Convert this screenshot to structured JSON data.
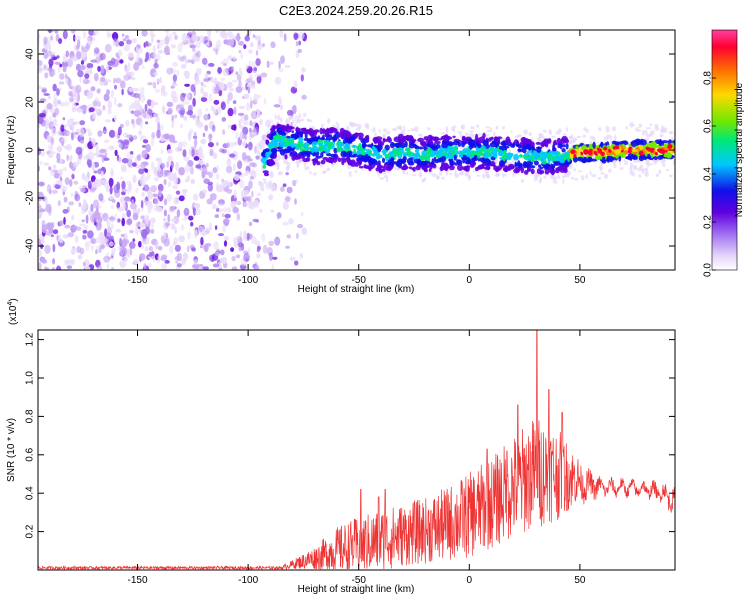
{
  "figure_title": "C2E3.2024.259.20.26.R15",
  "chart_data": [
    {
      "type": "heatmap",
      "title": "C2E3.2024.259.20.26.R15",
      "xlabel": "Height of straight line (km)",
      "ylabel": "Frequency (Hz)",
      "xlim": [
        -195,
        93
      ],
      "ylim": [
        -50,
        50
      ],
      "xticks": [
        -150,
        -100,
        -50,
        0,
        50
      ],
      "yticks": [
        -40,
        -20,
        0,
        20,
        40
      ],
      "colorbar": {
        "label": "Normalized spectral amplitude",
        "range": [
          0,
          1
        ],
        "ticks": [
          0.0,
          0.2,
          0.4,
          0.6,
          0.8
        ],
        "colormap": [
          "#ffffff",
          "#e4d4f8",
          "#a070f0",
          "#6000e0",
          "#1010e8",
          "#00c8ff",
          "#00e878",
          "#70e800",
          "#ffd800",
          "#ff7000",
          "#ff0030",
          "#ff40a0"
        ]
      },
      "noise_region_x": [
        -195,
        -80
      ],
      "ridge": [
        {
          "x": -93,
          "y": -6
        },
        {
          "x": -88,
          "y": 4
        },
        {
          "x": -80,
          "y": 3
        },
        {
          "x": -70,
          "y": 1
        },
        {
          "x": -60,
          "y": 2
        },
        {
          "x": -50,
          "y": 0
        },
        {
          "x": -40,
          "y": -2
        },
        {
          "x": -30,
          "y": -1
        },
        {
          "x": -20,
          "y": -2
        },
        {
          "x": -10,
          "y": -1
        },
        {
          "x": 0,
          "y": -1
        },
        {
          "x": 10,
          "y": -1
        },
        {
          "x": 20,
          "y": -2
        },
        {
          "x": 30,
          "y": -3
        },
        {
          "x": 40,
          "y": -3
        },
        {
          "x": 45,
          "y": -2
        },
        {
          "x": 50,
          "y": -1
        },
        {
          "x": 60,
          "y": -1
        },
        {
          "x": 70,
          "y": 0
        },
        {
          "x": 80,
          "y": 0
        },
        {
          "x": 90,
          "y": 0
        }
      ]
    },
    {
      "type": "line",
      "xlabel": "Height of straight line (km)",
      "ylabel": "SNR (10 * v/v)",
      "ylabel_multiplier": "(x10",
      "ylabel_multiplier_exp": "4",
      "multiplier_close": ")",
      "xlim": [
        -195,
        93
      ],
      "ylim": [
        0,
        1.25
      ],
      "xticks": [
        -150,
        -100,
        -50,
        0,
        50
      ],
      "yticks": [
        0.2,
        0.4,
        0.6,
        0.8,
        1.0,
        1.2
      ],
      "yticklabels": [
        "0.2",
        "0.4",
        "0.6",
        "0.8",
        "1.0",
        "1.2"
      ],
      "color": "#ee3333",
      "envelope": [
        {
          "x": -195,
          "base": 0.01,
          "amp": 0.01
        },
        {
          "x": -85,
          "base": 0.01,
          "amp": 0.01
        },
        {
          "x": -78,
          "base": 0.03,
          "amp": 0.04
        },
        {
          "x": -70,
          "base": 0.05,
          "amp": 0.08
        },
        {
          "x": -60,
          "base": 0.08,
          "amp": 0.16
        },
        {
          "x": -50,
          "base": 0.1,
          "amp": 0.2
        },
        {
          "x": -40,
          "base": 0.12,
          "amp": 0.22
        },
        {
          "x": -30,
          "base": 0.15,
          "amp": 0.22
        },
        {
          "x": -20,
          "base": 0.17,
          "amp": 0.23
        },
        {
          "x": -10,
          "base": 0.2,
          "amp": 0.26
        },
        {
          "x": 0,
          "base": 0.24,
          "amp": 0.3
        },
        {
          "x": 10,
          "base": 0.3,
          "amp": 0.32
        },
        {
          "x": 20,
          "base": 0.38,
          "amp": 0.36
        },
        {
          "x": 30,
          "base": 0.45,
          "amp": 0.4
        },
        {
          "x": 40,
          "base": 0.45,
          "amp": 0.32
        },
        {
          "x": 50,
          "base": 0.45,
          "amp": 0.15
        },
        {
          "x": 60,
          "base": 0.43,
          "amp": 0.06
        },
        {
          "x": 70,
          "base": 0.43,
          "amp": 0.05
        },
        {
          "x": 80,
          "base": 0.42,
          "amp": 0.05
        },
        {
          "x": 88,
          "base": 0.4,
          "amp": 0.07
        },
        {
          "x": 93,
          "base": 0.35,
          "amp": 0.1
        }
      ],
      "peaks": [
        {
          "x": -49,
          "y": 0.42
        },
        {
          "x": -41,
          "y": 0.38
        },
        {
          "x": -38,
          "y": 0.42
        },
        {
          "x": 8,
          "y": 0.63
        },
        {
          "x": 17,
          "y": 0.62
        },
        {
          "x": 22,
          "y": 0.86
        },
        {
          "x": 30.5,
          "y": 1.26
        },
        {
          "x": 36,
          "y": 0.94
        },
        {
          "x": 42,
          "y": 0.82
        }
      ]
    }
  ]
}
